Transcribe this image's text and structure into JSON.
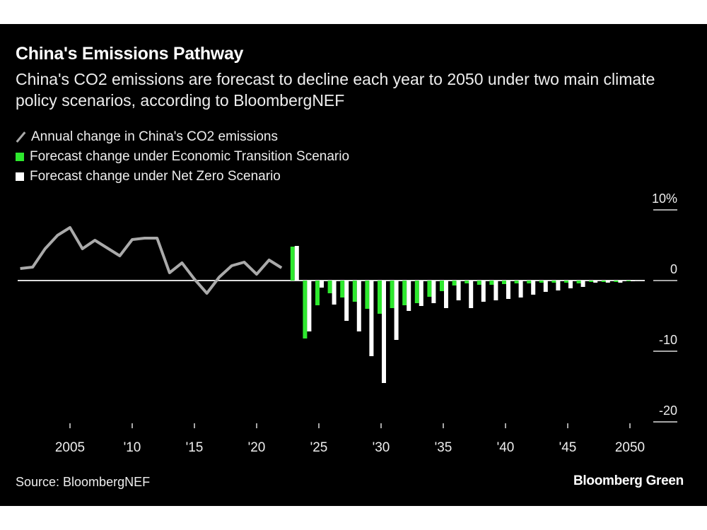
{
  "chart_data": {
    "type": "bar",
    "title": "China's Emissions Pathway",
    "subtitle": "China's CO2 emissions are forecast to decline each year to 2050 under two main climate policy scenarios, according to BloombergNEF",
    "legend": [
      {
        "label": "Annual change in China's CO2 emissions",
        "color": "#aaaaaa",
        "kind": "line"
      },
      {
        "label": "Forecast change under Economic Transition Scenario",
        "color": "#2ee82e",
        "kind": "bar"
      },
      {
        "label": "Forecast change under Net Zero Scenario",
        "color": "#ffffff",
        "kind": "bar"
      }
    ],
    "legend_placement": "top-left",
    "grid": false,
    "ylim": [
      -20,
      10
    ],
    "y_ticks": [
      {
        "v": 10,
        "label": "10%"
      },
      {
        "v": 0,
        "label": "0"
      },
      {
        "v": -10,
        "label": "-10"
      },
      {
        "v": -20,
        "label": "-20"
      }
    ],
    "x_ticks": [
      {
        "v": 2005,
        "label": "2005"
      },
      {
        "v": 2010,
        "label": "'10"
      },
      {
        "v": 2015,
        "label": "'15"
      },
      {
        "v": 2020,
        "label": "'20"
      },
      {
        "v": 2025,
        "label": "'25"
      },
      {
        "v": 2030,
        "label": "'30"
      },
      {
        "v": 2035,
        "label": "'35"
      },
      {
        "v": 2040,
        "label": "'40"
      },
      {
        "v": 2045,
        "label": "'45"
      },
      {
        "v": 2050,
        "label": "2050"
      }
    ],
    "xlim": [
      2000,
      2051
    ],
    "line_series": {
      "name": "Annual change in China's CO2 emissions",
      "x": [
        2001,
        2002,
        2003,
        2004,
        2005,
        2006,
        2007,
        2008,
        2009,
        2010,
        2011,
        2012,
        2013,
        2014,
        2015,
        2016,
        2017,
        2018,
        2019,
        2020,
        2021,
        2022
      ],
      "values": [
        1.7,
        1.9,
        4.5,
        6.4,
        7.5,
        4.5,
        5.7,
        4.6,
        3.5,
        5.8,
        6.0,
        6.0,
        1.1,
        2.5,
        0.2,
        -1.8,
        0.5,
        2.1,
        2.6,
        0.9,
        2.9,
        1.8
      ]
    },
    "bar_x": [
      2023,
      2024,
      2025,
      2026,
      2027,
      2028,
      2029,
      2030,
      2031,
      2032,
      2033,
      2034,
      2035,
      2036,
      2037,
      2038,
      2039,
      2040,
      2041,
      2042,
      2043,
      2044,
      2045,
      2046,
      2047,
      2048,
      2049,
      2050
    ],
    "series": [
      {
        "name": "Forecast change under Economic Transition Scenario",
        "color": "#2ee82e",
        "values": [
          4.8,
          -8.2,
          -3.5,
          -1.8,
          -2.4,
          -3.0,
          -4.0,
          -4.7,
          -3.9,
          -3.5,
          -3.2,
          -2.3,
          -1.5,
          -0.7,
          -0.4,
          -0.6,
          -0.6,
          -0.5,
          -0.4,
          -0.4,
          -0.3,
          -0.3,
          -0.3,
          -0.4,
          -0.2,
          -0.2,
          -0.2,
          -0.1
        ]
      },
      {
        "name": "Forecast change under Net Zero Scenario",
        "color": "#ffffff",
        "values": [
          4.9,
          -7.2,
          -1.0,
          -3.4,
          -5.7,
          -7.2,
          -10.7,
          -14.5,
          -8.4,
          -4.3,
          -3.6,
          -3.2,
          -3.9,
          -2.8,
          -3.9,
          -3.0,
          -2.8,
          -2.6,
          -2.4,
          -2.0,
          -1.6,
          -1.4,
          -1.1,
          -0.9,
          -0.3,
          -0.3,
          -0.3,
          -0.1
        ]
      }
    ]
  },
  "footer": {
    "source": "Source: BloombergNEF",
    "logo": "Bloomberg Green"
  }
}
